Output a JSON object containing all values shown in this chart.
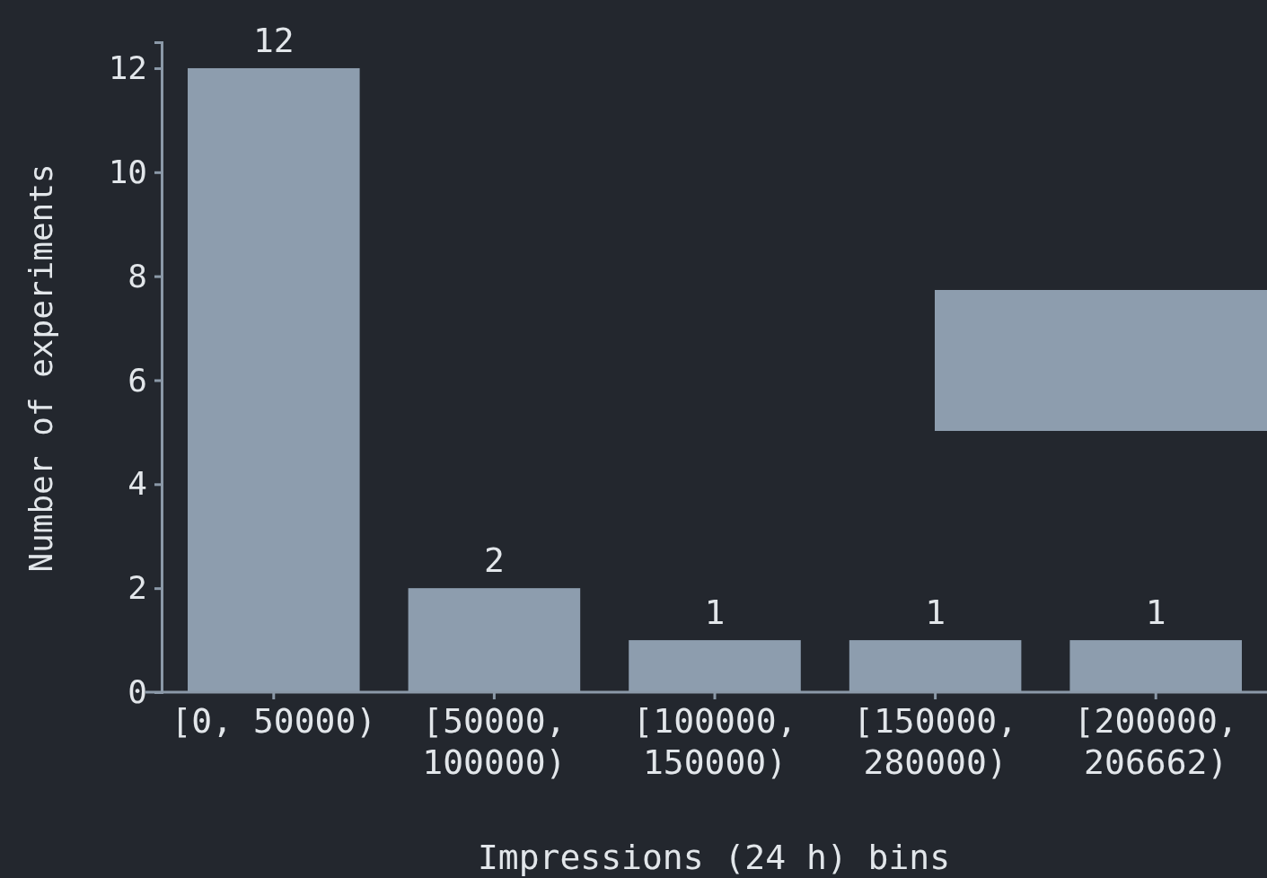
{
  "chart_data": {
    "type": "bar",
    "xlabel": "Impressions (24 h) bins",
    "ylabel": "Number of experiments",
    "categories": [
      "[0, 50000)",
      "[50000, 100000)",
      "[100000, 150000)",
      "[150000, 280000)",
      "[200000, 206662)"
    ],
    "values": [
      12,
      2,
      1,
      1,
      1
    ],
    "color": "#8d9dae",
    "ylim": [
      0,
      12.5
    ],
    "yticks": [
      0,
      2,
      4,
      6,
      8,
      10,
      12
    ],
    "data_labels": true,
    "grid": false
  }
}
